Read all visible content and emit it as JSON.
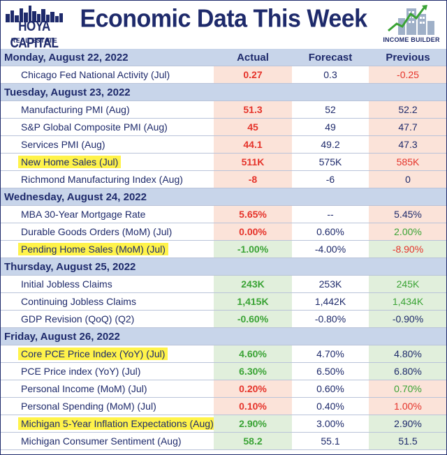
{
  "header": {
    "title": "Economic Data This Week",
    "left_logo_text": "HOYA CAPITAL",
    "left_logo_sub": "REAL ESTATE",
    "right_logo_text": "INCOME BUILDER"
  },
  "columns": {
    "actual": "Actual",
    "forecast": "Forecast",
    "previous": "Previous"
  },
  "days": [
    {
      "date": "Monday, August 22, 2022",
      "show_headers": true,
      "rows": [
        {
          "name": "Chicago Fed National Activity (Jul)",
          "highlight": false,
          "bg": "pink",
          "actual": "0.27",
          "actual_color": "red",
          "forecast": "0.3",
          "previous": "-0.25",
          "previous_color": "red"
        }
      ]
    },
    {
      "date": "Tuesday, August 23, 2022",
      "show_headers": false,
      "rows": [
        {
          "name": "Manufacturing PMI (Aug)",
          "highlight": false,
          "bg": "pink",
          "actual": "51.3",
          "actual_color": "red",
          "forecast": "52",
          "previous": "52.2",
          "previous_color": "navy"
        },
        {
          "name": "S&P Global Composite PMI (Aug)",
          "highlight": false,
          "bg": "pink",
          "actual": "45",
          "actual_color": "red",
          "forecast": "49",
          "previous": "47.7",
          "previous_color": "navy"
        },
        {
          "name": "Services PMI (Aug)",
          "highlight": false,
          "bg": "pink",
          "actual": "44.1",
          "actual_color": "red",
          "forecast": "49.2",
          "previous": "47.3",
          "previous_color": "navy"
        },
        {
          "name": "New Home Sales (Jul)",
          "highlight": true,
          "bg": "pink",
          "actual": "511K",
          "actual_color": "red",
          "forecast": "575K",
          "previous": "585K",
          "previous_color": "red"
        },
        {
          "name": "Richmond Manufacturing Index (Aug)",
          "highlight": false,
          "bg": "pink",
          "actual": "-8",
          "actual_color": "red",
          "forecast": "-6",
          "previous": "0",
          "previous_color": "navy"
        }
      ]
    },
    {
      "date": "Wednesday, August 24, 2022",
      "show_headers": false,
      "rows": [
        {
          "name": "MBA 30-Year Mortgage Rate",
          "highlight": false,
          "bg": "pink",
          "actual": "5.65%",
          "actual_color": "red",
          "forecast": "--",
          "previous": "5.45%",
          "previous_color": "navy"
        },
        {
          "name": "Durable Goods Orders (MoM) (Jul)",
          "highlight": false,
          "bg": "pink",
          "actual": "0.00%",
          "actual_color": "red",
          "forecast": "0.60%",
          "previous": "2.00%",
          "previous_color": "green"
        },
        {
          "name": "Pending Home Sales (MoM) (Jul)",
          "highlight": true,
          "bg": "green",
          "actual": "-1.00%",
          "actual_color": "green",
          "forecast": "-4.00%",
          "previous": "-8.90%",
          "previous_color": "red"
        }
      ]
    },
    {
      "date": "Thursday, August 25, 2022",
      "show_headers": false,
      "rows": [
        {
          "name": "Initial Jobless Claims",
          "highlight": false,
          "bg": "green",
          "actual": "243K",
          "actual_color": "green",
          "forecast": "253K",
          "previous": "245K",
          "previous_color": "green"
        },
        {
          "name": "Continuing Jobless Claims",
          "highlight": false,
          "bg": "green",
          "actual": "1,415K",
          "actual_color": "green",
          "forecast": "1,442K",
          "previous": "1,434K",
          "previous_color": "green"
        },
        {
          "name": "GDP Revision (QoQ) (Q2)",
          "highlight": false,
          "bg": "green",
          "actual": "-0.60%",
          "actual_color": "green",
          "forecast": "-0.80%",
          "previous": "-0.90%",
          "previous_color": "navy"
        }
      ]
    },
    {
      "date": "Friday, August 26, 2022",
      "show_headers": false,
      "rows": [
        {
          "name": "Core PCE Price Index (YoY) (Jul)",
          "highlight": true,
          "bg": "green",
          "actual": "4.60%",
          "actual_color": "green",
          "forecast": "4.70%",
          "previous": "4.80%",
          "previous_color": "navy"
        },
        {
          "name": "PCE Price index (YoY) (Jul)",
          "highlight": false,
          "bg": "green",
          "actual": "6.30%",
          "actual_color": "green",
          "forecast": "6.50%",
          "previous": "6.80%",
          "previous_color": "navy"
        },
        {
          "name": "Personal Income (MoM) (Jul)",
          "highlight": false,
          "bg": "pink",
          "actual": "0.20%",
          "actual_color": "red",
          "forecast": "0.60%",
          "previous": "0.70%",
          "previous_color": "green"
        },
        {
          "name": "Personal Spending (MoM) (Jul)",
          "highlight": false,
          "bg": "pink",
          "actual": "0.10%",
          "actual_color": "red",
          "forecast": "0.40%",
          "previous": "1.00%",
          "previous_color": "red"
        },
        {
          "name": "Michigan 5-Year Inflation Expectations (Aug)",
          "highlight": true,
          "bg": "green",
          "actual": "2.90%",
          "actual_color": "green",
          "forecast": "3.00%",
          "previous": "2.90%",
          "previous_color": "navy"
        },
        {
          "name": "Michigan Consumer Sentiment (Aug)",
          "highlight": false,
          "bg": "green",
          "actual": "58.2",
          "actual_color": "green",
          "forecast": "55.1",
          "previous": "51.5",
          "previous_color": "navy"
        }
      ]
    }
  ]
}
